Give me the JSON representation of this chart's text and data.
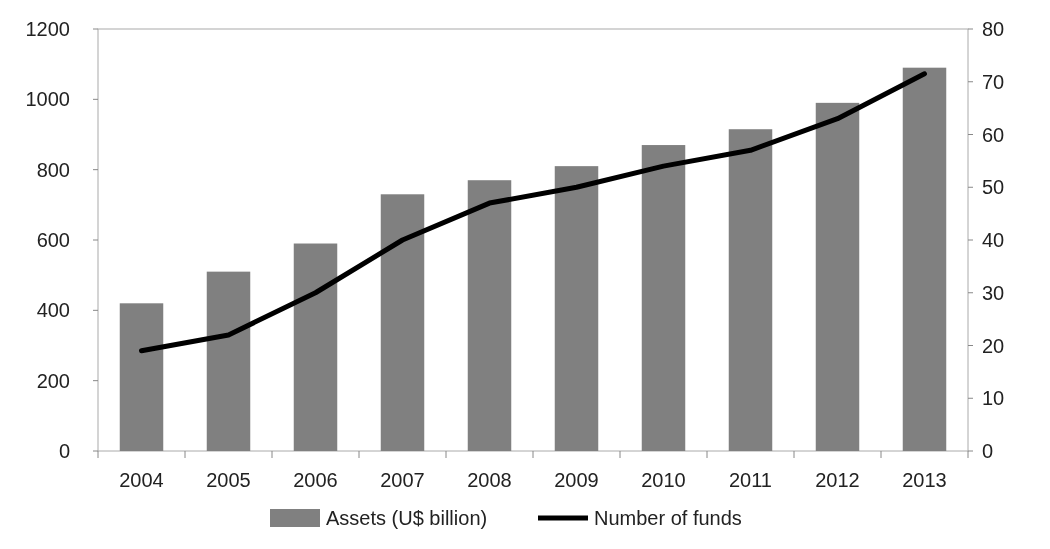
{
  "chart_data": {
    "type": "bar",
    "categories": [
      "2004",
      "2005",
      "2006",
      "2007",
      "2008",
      "2009",
      "2010",
      "2011",
      "2012",
      "2013"
    ],
    "series": [
      {
        "name": "Assets (U$ billion)",
        "color": "#808080",
        "values": [
          420,
          510,
          590,
          730,
          770,
          810,
          870,
          915,
          990,
          1090
        ]
      },
      {
        "name": "Number of funds",
        "type": "line",
        "axis": "y2",
        "color": "#000000",
        "values": [
          19,
          22,
          30,
          40,
          47,
          50,
          54,
          57,
          63,
          71.5
        ]
      }
    ],
    "ylim": [
      0,
      1200
    ],
    "yticks": [
      0,
      200,
      400,
      600,
      800,
      1000,
      1200
    ],
    "y2lim": [
      0,
      80
    ],
    "y2ticks": [
      0,
      10,
      20,
      30,
      40,
      50,
      60,
      70,
      80
    ],
    "grid": false,
    "legend": "bottom"
  }
}
